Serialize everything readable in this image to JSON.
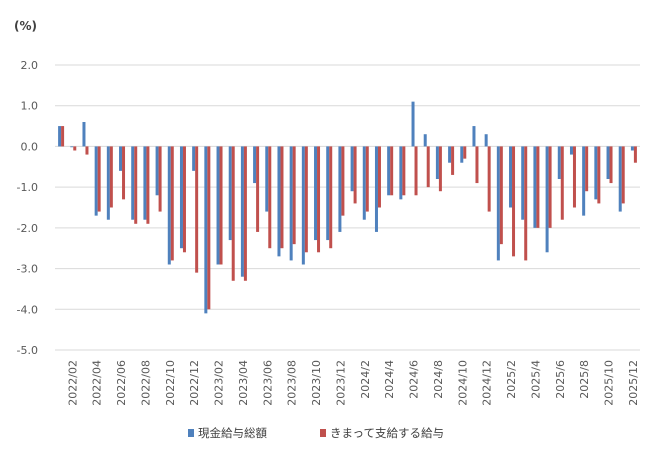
{
  "chart_data": {
    "type": "bar",
    "unit_label": "(%)",
    "title": "",
    "xlabel": "",
    "ylabel": "",
    "ylim": [
      -5.0,
      2.0
    ],
    "y_ticks": [
      "2.0",
      "1.0",
      "0.0",
      "-1.0",
      "-2.0",
      "-3.0",
      "-4.0",
      "-5.0"
    ],
    "grid": "horizontal",
    "legend_position": "bottom",
    "x_tick_labels": [
      {
        "label": "2022/02",
        "index": 1
      },
      {
        "label": "2022/04",
        "index": 3
      },
      {
        "label": "2022/06",
        "index": 5
      },
      {
        "label": "2022/08",
        "index": 7
      },
      {
        "label": "2022/10",
        "index": 9
      },
      {
        "label": "2022/12",
        "index": 11
      },
      {
        "label": "2023/02",
        "index": 13
      },
      {
        "label": "2023/04",
        "index": 15
      },
      {
        "label": "2023/06",
        "index": 17
      },
      {
        "label": "2023/08",
        "index": 19
      },
      {
        "label": "2023/10",
        "index": 21
      },
      {
        "label": "2023/12",
        "index": 23
      },
      {
        "label": "2024/2",
        "index": 25
      },
      {
        "label": "2024/4",
        "index": 27
      },
      {
        "label": "2024/6",
        "index": 29
      },
      {
        "label": "2024/8",
        "index": 31
      },
      {
        "label": "2024/10",
        "index": 33
      },
      {
        "label": "2024/12",
        "index": 35
      },
      {
        "label": "2025/2",
        "index": 37
      },
      {
        "label": "2025/4",
        "index": 39
      },
      {
        "label": "2025/6",
        "index": 41
      },
      {
        "label": "2025/8",
        "index": 43
      },
      {
        "label": "2025/10",
        "index": 45
      },
      {
        "label": "2025/12",
        "index": 47
      }
    ],
    "categories": [
      "2022/01",
      "2022/02",
      "2022/03",
      "2022/04",
      "2022/05",
      "2022/06",
      "2022/07",
      "2022/08",
      "2022/09",
      "2022/10",
      "2022/11",
      "2022/12",
      "2023/01",
      "2023/02",
      "2023/03",
      "2023/04",
      "2023/05",
      "2023/06",
      "2023/07",
      "2023/08",
      "2023/09",
      "2023/10",
      "2023/11",
      "2023/12",
      "2024/1",
      "2024/2",
      "2024/3",
      "2024/4",
      "2024/5",
      "2024/6",
      "2024/7",
      "2024/8",
      "2024/9",
      "2024/10",
      "2024/11",
      "2024/12",
      "2025/1",
      "2025/2",
      "2025/3",
      "2025/4",
      "2025/5",
      "2025/6",
      "2025/7",
      "2025/8",
      "2025/9",
      "2025/10",
      "2025/11",
      "2025/12"
    ],
    "series": [
      {
        "name": "現金給与総額",
        "color": "#4F81BD",
        "values": [
          0.5,
          0.0,
          0.6,
          -1.7,
          -1.8,
          -0.6,
          -1.8,
          -1.8,
          -1.2,
          -2.9,
          -2.5,
          -0.6,
          -4.1,
          -2.9,
          -2.3,
          -3.2,
          -0.9,
          -1.6,
          -2.7,
          -2.8,
          -2.9,
          -2.3,
          -2.3,
          -2.1,
          -1.1,
          -1.8,
          -2.1,
          -1.2,
          -1.3,
          1.1,
          0.3,
          -0.8,
          -0.4,
          -0.4,
          0.5,
          0.3,
          -2.8,
          -1.5,
          -1.8,
          -2.0,
          -2.6,
          -0.8,
          -0.2,
          -1.7,
          -1.3,
          -0.8,
          -1.6,
          -0.1
        ]
      },
      {
        "name": "きまって支給する給与",
        "color": "#C0504D",
        "values": [
          0.5,
          -0.1,
          -0.2,
          -1.6,
          -1.5,
          -1.3,
          -1.9,
          -1.9,
          -1.6,
          -2.8,
          -2.6,
          -3.1,
          -4.0,
          -2.9,
          -3.3,
          -3.3,
          -2.1,
          -2.5,
          -2.5,
          -2.4,
          -2.6,
          -2.6,
          -2.5,
          -1.7,
          -1.4,
          -1.6,
          -1.5,
          -1.2,
          -1.2,
          -1.2,
          -1.0,
          -1.1,
          -0.7,
          -0.3,
          -0.9,
          -1.6,
          -2.4,
          -2.7,
          -2.8,
          -2.0,
          -2.0,
          -1.8,
          -1.5,
          -1.1,
          -1.4,
          -0.9,
          -1.4,
          -0.4
        ]
      }
    ]
  }
}
